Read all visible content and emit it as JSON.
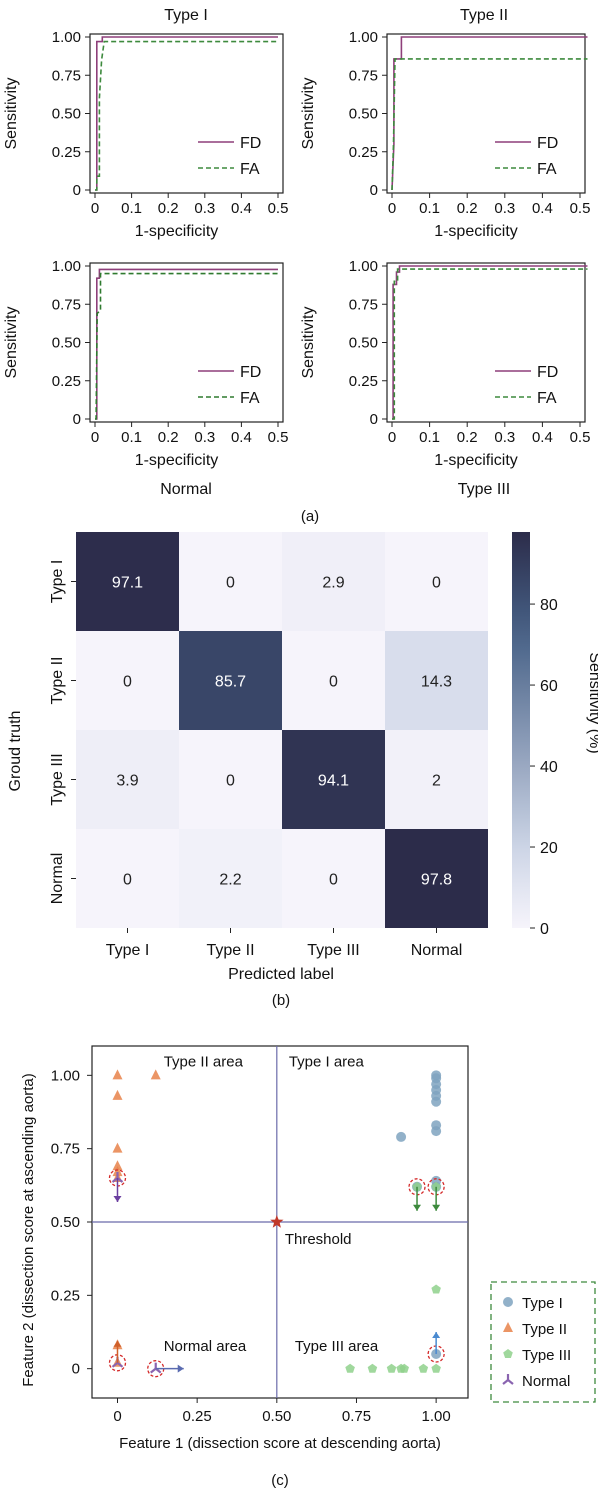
{
  "figure": {
    "panel_a_label": "(a)",
    "panel_b_label": "(b)",
    "panel_c_label": "(c)"
  },
  "chart_data": [
    {
      "type": "line",
      "title": "Type I",
      "xlabel": "1-specificity",
      "ylabel": "Sensitivity",
      "xlim": [
        0,
        0.5
      ],
      "ylim": [
        0,
        1.0
      ],
      "xticks": [
        "0",
        "0.1",
        "0.2",
        "0.3",
        "0.4",
        "0.5"
      ],
      "yticks": [
        "0",
        "0.25",
        "0.50",
        "0.75",
        "1.00"
      ],
      "legend_position": "lower-right",
      "series": [
        {
          "name": "FD",
          "color": "#8e3f7a",
          "dash": "solid",
          "x": [
            0,
            0,
            0.005,
            0.005,
            0.02,
            0.02,
            0.5
          ],
          "y": [
            0,
            0.0,
            0.0,
            0.97,
            0.97,
            1.0,
            1.0
          ]
        },
        {
          "name": "FA",
          "color": "#3d8a3d",
          "dash": "dashed",
          "x": [
            0,
            0.005,
            0.005,
            0.012,
            0.012,
            0.018,
            0.025,
            0.5
          ],
          "y": [
            0,
            0,
            0.09,
            0.09,
            0.6,
            0.85,
            0.97,
            0.97
          ]
        }
      ]
    },
    {
      "type": "line",
      "title": "Type II",
      "xlabel": "1-specificity",
      "ylabel": "Sensitivity",
      "xlim": [
        0,
        0.5
      ],
      "ylim": [
        0,
        1.0
      ],
      "xticks": [
        "0",
        "0.1",
        "0.2",
        "0.3",
        "0.4",
        "0.5"
      ],
      "yticks": [
        "0",
        "0.25",
        "0.50",
        "0.75",
        "1.00"
      ],
      "legend_position": "lower-right",
      "series": [
        {
          "name": "FD",
          "color": "#8e3f7a",
          "dash": "solid",
          "x": [
            0,
            0,
            0.005,
            0.005,
            0.025,
            0.025,
            0.52
          ],
          "y": [
            0,
            0.0,
            0.3,
            0.857,
            0.857,
            1.0,
            1.0
          ]
        },
        {
          "name": "FA",
          "color": "#3d8a3d",
          "dash": "dashed",
          "x": [
            0,
            0.004,
            0.008,
            0.52
          ],
          "y": [
            0,
            0.3,
            0.857,
            0.857
          ]
        }
      ]
    },
    {
      "type": "line",
      "title": "Normal",
      "xlabel": "1-specificity",
      "ylabel": "Sensitivity",
      "xlim": [
        0,
        0.5
      ],
      "ylim": [
        0,
        1.0
      ],
      "xticks": [
        "0",
        "0.1",
        "0.2",
        "0.3",
        "0.4",
        "0.5"
      ],
      "yticks": [
        "0",
        "0.25",
        "0.50",
        "0.75",
        "1.00"
      ],
      "legend_position": "lower-right",
      "series": [
        {
          "name": "FD",
          "color": "#8e3f7a",
          "dash": "solid",
          "x": [
            0,
            0,
            0.005,
            0.005,
            0.012,
            0.012,
            0.5
          ],
          "y": [
            0,
            0.0,
            0.0,
            0.92,
            0.92,
            0.978,
            0.978
          ]
        },
        {
          "name": "FA",
          "color": "#2f7a2f",
          "dash": "dashed",
          "x": [
            0,
            0.003,
            0.006,
            0.006,
            0.015,
            0.015,
            0.5
          ],
          "y": [
            0,
            0,
            0.69,
            0.69,
            0.71,
            0.95,
            0.95
          ]
        }
      ]
    },
    {
      "type": "line",
      "title": "Type III",
      "xlabel": "1-specificity",
      "ylabel": "Sensitivity",
      "xlim": [
        0,
        0.5
      ],
      "ylim": [
        0,
        1.0
      ],
      "xticks": [
        "0",
        "0.1",
        "0.2",
        "0.3",
        "0.4",
        "0.5"
      ],
      "yticks": [
        "0",
        "0.25",
        "0.50",
        "0.75",
        "1.00"
      ],
      "legend_position": "lower-right",
      "series": [
        {
          "name": "FD",
          "color": "#8e3f7a",
          "dash": "solid",
          "x": [
            0,
            0,
            0.003,
            0.003,
            0.012,
            0.012,
            0.02,
            0.02,
            0.52
          ],
          "y": [
            0,
            0.0,
            0.0,
            0.88,
            0.88,
            0.96,
            0.96,
            1.0,
            1.0
          ]
        },
        {
          "name": "FA",
          "color": "#3d8a3d",
          "dash": "dashed",
          "x": [
            0,
            0.006,
            0.006,
            0.015,
            0.015,
            0.52
          ],
          "y": [
            0,
            0,
            0.9,
            0.9,
            0.98,
            0.98
          ]
        }
      ]
    },
    {
      "type": "heatmap",
      "xlabel": "Predicted label",
      "ylabel": "Groud truth",
      "colorbar_label": "Sensitivity (%)",
      "colorbar_ticks": [
        "0",
        "20",
        "40",
        "60",
        "80"
      ],
      "colorbar_range": [
        0,
        97.8
      ],
      "x_categories": [
        "Type I",
        "Type II",
        "Type III",
        "Normal"
      ],
      "y_categories": [
        "Type I",
        "Type II",
        "Type III",
        "Normal"
      ],
      "values": [
        [
          97.1,
          0,
          2.9,
          0
        ],
        [
          0,
          85.7,
          0,
          14.3
        ],
        [
          3.9,
          0,
          94.1,
          2
        ],
        [
          0,
          2.2,
          0,
          97.8
        ]
      ],
      "cell_labels": [
        [
          "97.1",
          "0",
          "2.9",
          "0"
        ],
        [
          "0",
          "85.7",
          "0",
          "14.3"
        ],
        [
          "3.9",
          "0",
          "94.1",
          "2"
        ],
        [
          "0",
          "2.2",
          "0",
          "97.8"
        ]
      ]
    },
    {
      "type": "scatter",
      "xlabel": "Feature 1 (dissection score at descending aorta)",
      "ylabel": "Feature 2 (dissection score at ascending aorta)",
      "xlim": [
        -0.08,
        1.1
      ],
      "ylim": [
        -0.1,
        1.1
      ],
      "xticks": [
        "0",
        "0.25",
        "0.50",
        "0.75",
        "1.00"
      ],
      "yticks": [
        "0",
        "0.25",
        "0.50",
        "0.75",
        "1.00"
      ],
      "threshold": {
        "x": 0.5,
        "y": 0.5,
        "label": "Threshold"
      },
      "area_labels": [
        "Type II area",
        "Type I area",
        "Normal area",
        "Type III area"
      ],
      "legend_position": "right",
      "series": [
        {
          "name": "Type I",
          "marker": "circle",
          "color": "#7fa3c0",
          "points": [
            [
              1.0,
              1.0
            ],
            [
              1.0,
              0.99
            ],
            [
              1.0,
              0.97
            ],
            [
              1.0,
              0.95
            ],
            [
              1.0,
              0.93
            ],
            [
              1.0,
              0.91
            ],
            [
              1.0,
              0.83
            ],
            [
              1.0,
              0.81
            ],
            [
              0.89,
              0.79
            ],
            [
              1.0,
              0.64
            ],
            [
              1.0,
              0.62
            ],
            [
              0.94,
              0.62
            ],
            [
              1.0,
              0.05
            ]
          ]
        },
        {
          "name": "Type II",
          "marker": "triangle",
          "color": "#e8834a",
          "points": [
            [
              0.0,
              1.0
            ],
            [
              0.12,
              1.0
            ],
            [
              0.0,
              0.93
            ],
            [
              0.0,
              0.75
            ],
            [
              0.0,
              0.69
            ],
            [
              0.0,
              0.67
            ],
            [
              0.0,
              0.65
            ],
            [
              0.0,
              0.08
            ],
            [
              0.0,
              0.02
            ]
          ]
        },
        {
          "name": "Type III",
          "marker": "pentagon",
          "color": "#8fd18c",
          "points": [
            [
              1.0,
              0.27
            ],
            [
              0.73,
              0.0
            ],
            [
              0.8,
              0.0
            ],
            [
              0.86,
              0.0
            ],
            [
              0.89,
              0.0
            ],
            [
              0.9,
              0.0
            ],
            [
              0.96,
              0.0
            ],
            [
              1.0,
              0.0
            ],
            [
              0.94,
              0.62
            ],
            [
              1.0,
              0.62
            ]
          ]
        },
        {
          "name": "Normal",
          "marker": "tri-star",
          "color": "#8a64b0",
          "points": [
            [
              0.0,
              0.65
            ],
            [
              0.0,
              0.02
            ],
            [
              0.12,
              0.0
            ]
          ]
        }
      ],
      "highlighted": [
        {
          "x": 0.0,
          "y": 0.65,
          "arrow": "down",
          "arrow_color": "#6b3fa0"
        },
        {
          "x": 0.0,
          "y": 0.02,
          "arrow": "up",
          "arrow_color": "#d0602a"
        },
        {
          "x": 0.12,
          "y": 0.0,
          "arrow": "right",
          "arrow_color": "#5a6bb0"
        },
        {
          "x": 0.94,
          "y": 0.62,
          "arrow": "down",
          "arrow_color": "#3d8a3d"
        },
        {
          "x": 1.0,
          "y": 0.62,
          "arrow": "down",
          "arrow_color": "#3d8a3d"
        },
        {
          "x": 1.0,
          "y": 0.05,
          "arrow": "up",
          "arrow_color": "#4a8ad0"
        }
      ]
    }
  ]
}
